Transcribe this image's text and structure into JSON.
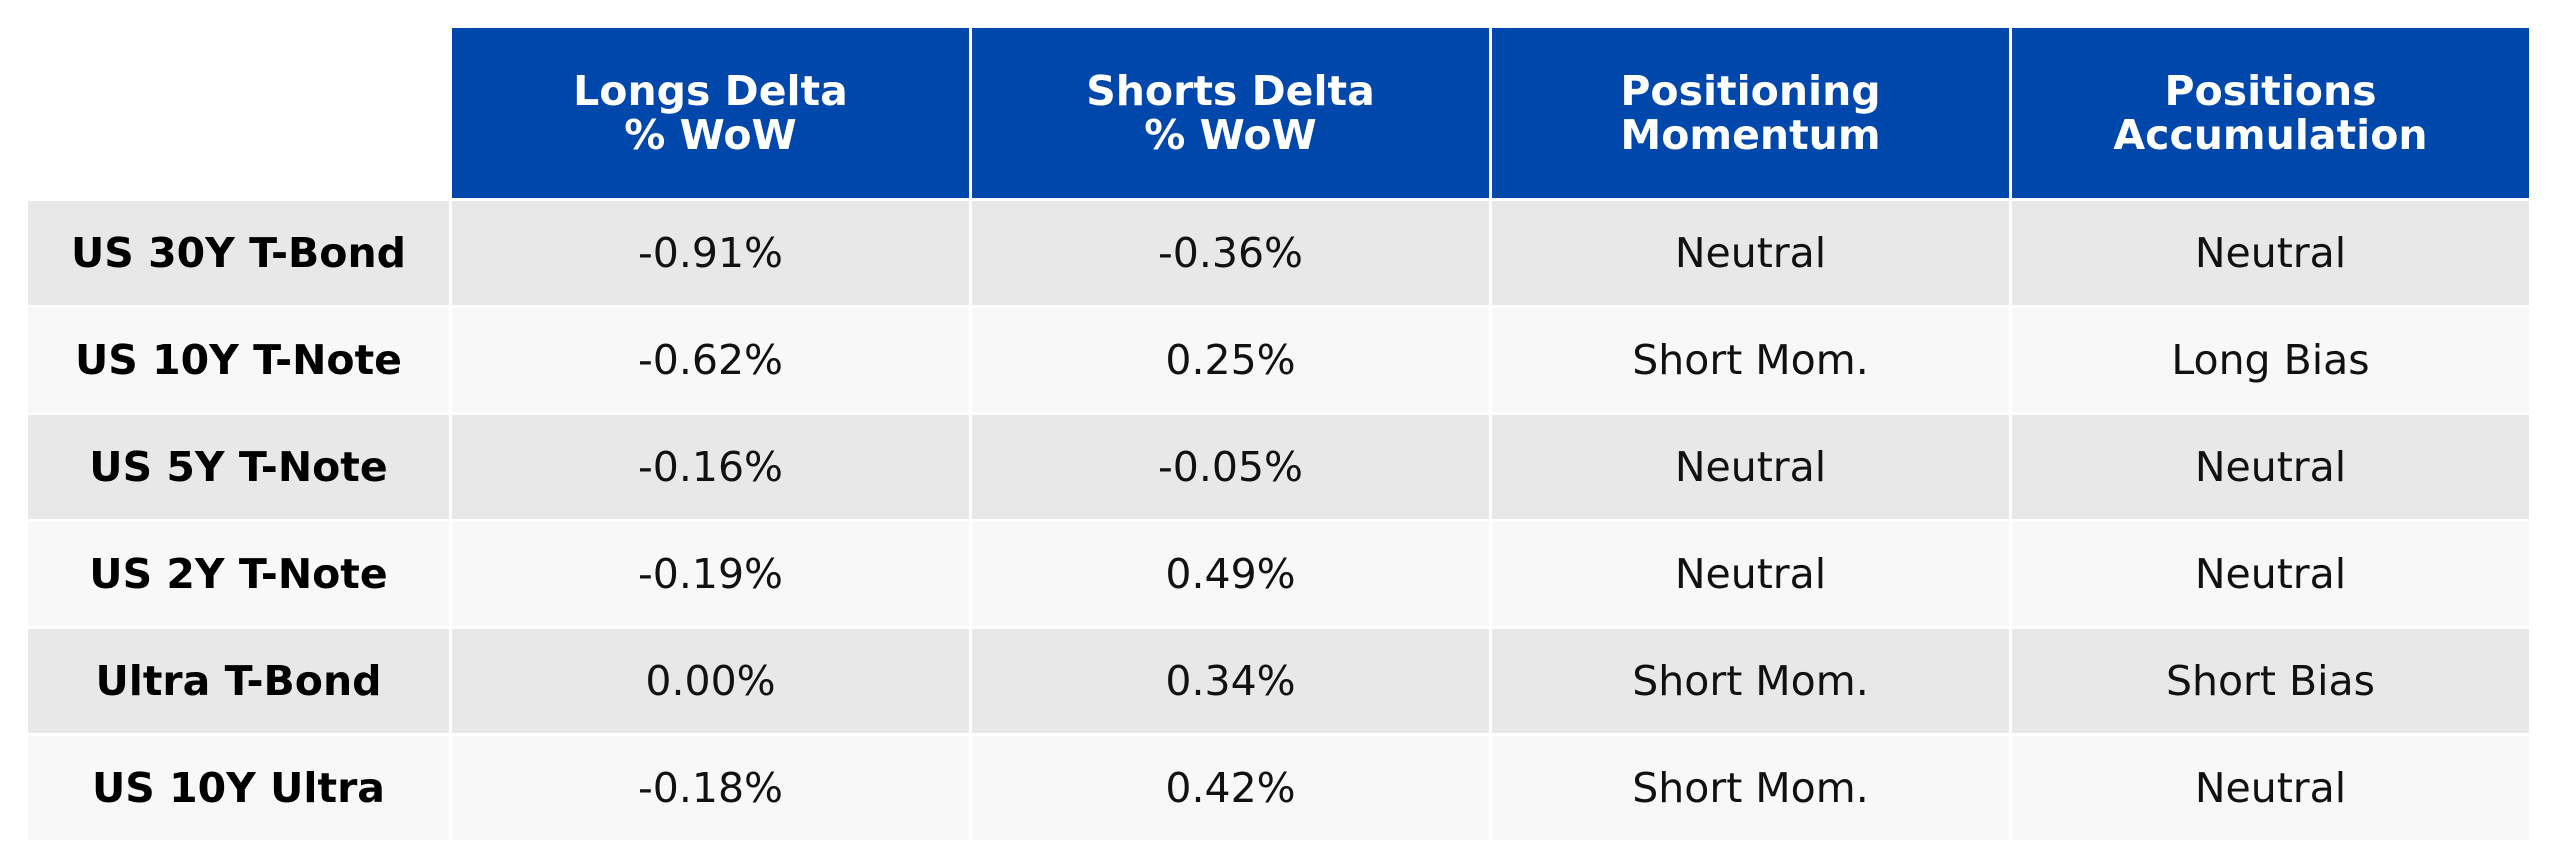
{
  "chart_data": {
    "type": "table",
    "columns": [
      [
        "Longs Delta",
        "% WoW"
      ],
      [
        "Shorts Delta",
        "% WoW"
      ],
      [
        "Positioning",
        "Momentum"
      ],
      [
        "Positions",
        "Accumulation"
      ]
    ],
    "rows": [
      {
        "label": "US 30Y T-Bond",
        "values": [
          "-0.91%",
          "-0.36%",
          "Neutral",
          "Neutral"
        ]
      },
      {
        "label": "US 10Y T-Note",
        "values": [
          "-0.62%",
          "0.25%",
          "Short Mom.",
          "Long Bias"
        ]
      },
      {
        "label": "US 5Y T-Note",
        "values": [
          "-0.16%",
          "-0.05%",
          "Neutral",
          "Neutral"
        ]
      },
      {
        "label": "US 2Y T-Note",
        "values": [
          "-0.19%",
          "0.49%",
          "Neutral",
          "Neutral"
        ]
      },
      {
        "label": "Ultra T-Bond",
        "values": [
          "0.00%",
          "0.34%",
          "Short Mom.",
          "Short Bias"
        ]
      },
      {
        "label": "US 10Y Ultra",
        "values": [
          "-0.18%",
          "0.42%",
          "Short Mom.",
          "Neutral"
        ]
      }
    ],
    "colors": {
      "header_bg": "#0047ab",
      "header_text": "#ffffff",
      "row_odd": "#e8e8e8",
      "row_even": "#f8f8f8"
    }
  }
}
